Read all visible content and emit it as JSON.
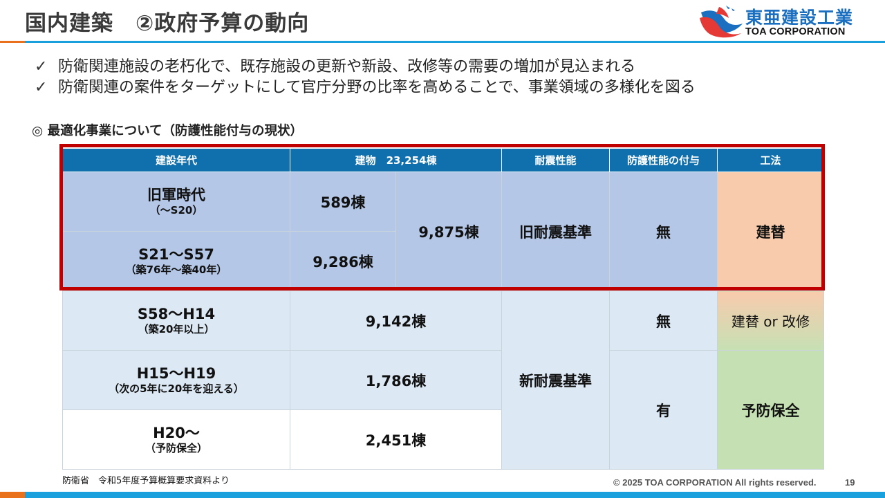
{
  "header": {
    "title": "国内建築　②政府予算の動向",
    "logo_text_jp": "東亜建設工業",
    "logo_text_en": "TOA CORPORATION",
    "accent_color": "#1aa0dc",
    "secondary_color": "#e9711c"
  },
  "bullets": [
    {
      "icon": "check-icon",
      "mark": "✓",
      "text": "防衛関連施設の老朽化で、既存施設の更新や新設、改修等の需要の増加が見込まれる"
    },
    {
      "icon": "check-icon",
      "mark": "✓",
      "text": "防衛関連の案件をターゲットにして官庁分野の比率を高めることで、事業領域の多様化を図る"
    }
  ],
  "subheading": "◎ 最適化事業について（防護性能付与の現状）",
  "table": {
    "headers": [
      "建設年代",
      "建物　23,254棟",
      "耐震性能",
      "防護性能の付与",
      "工法"
    ],
    "rows": [
      {
        "era": "旧軍時代",
        "era_sub": "（～S20）",
        "count": "589棟"
      },
      {
        "era": "S21～S57",
        "era_sub": "（築76年～築40年）",
        "count": "9,286棟"
      },
      {
        "era": "S58～H14",
        "era_sub": "（築20年以上）",
        "count": "9,142棟"
      },
      {
        "era": "H15～H19",
        "era_sub": "（次の5年に20年を迎える）",
        "count": "1,786棟"
      },
      {
        "era": "H20～",
        "era_sub": "（予防保全）",
        "count": "2,451棟"
      }
    ],
    "old_subtotal": "9,875棟",
    "seismic_old": "旧耐震基準",
    "seismic_new": "新耐震基準",
    "protection_none_old": "無",
    "protection_none_new": "無",
    "protection_yes": "有",
    "method_rebuild": "建替",
    "method_rebuild_or_renovate": "建替 or 改修",
    "method_preventive": "予防保全",
    "colors": {
      "header": "#0f70ad",
      "old_rows": "#b4c7e7",
      "new_rows": "#dce9f5",
      "orange": "#f8cbad",
      "green": "#c5e0b3",
      "highlight_border": "#c00000"
    }
  },
  "footer": {
    "source": "防衛省　令和5年度予算概算要求資料より",
    "copyright": "© 2025 TOA CORPORATION  All rights reserved.",
    "page_number": "19"
  }
}
